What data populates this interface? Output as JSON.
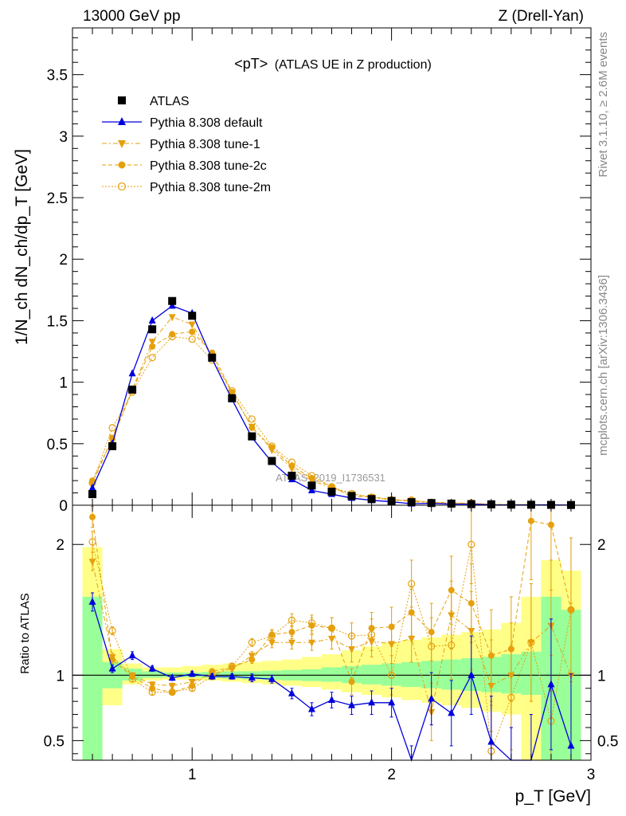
{
  "header": {
    "left": "13000 GeV pp",
    "right": "Z (Drell-Yan)"
  },
  "side_text": {
    "top": "Rivet 3.1.10, ≥ 2.6M events",
    "bottom": "mcplots.cern.ch [arXiv:1306.3436]"
  },
  "watermark": "ATLAS_2019_I1736531",
  "colors": {
    "atlas": "#000000",
    "default": "#0000dd",
    "tune": "#e5a00d",
    "band_inner": "#99ff99",
    "band_outer": "#ffff88"
  },
  "chart_data": [
    {
      "type": "line",
      "title": "<pT>",
      "subtitle": "(ATLAS UE in Z production)",
      "ylabel": "1/N_ch dN_ch/dp_T [GeV]",
      "xlabel": "p_T [GeV]",
      "xlim": [
        0.4,
        3.0
      ],
      "ylim": [
        0,
        3.88
      ],
      "y_ticks": [
        "0",
        "0.5",
        "1",
        "1.5",
        "2",
        "2.5",
        "3",
        "3.5"
      ],
      "grid": false,
      "legend_position": "top-left",
      "x": [
        0.5,
        0.6,
        0.7,
        0.8,
        0.9,
        1.0,
        1.1,
        1.2,
        1.3,
        1.4,
        1.5,
        1.6,
        1.7,
        1.8,
        1.9,
        2.0,
        2.1,
        2.2,
        2.3,
        2.4,
        2.5,
        2.6,
        2.7,
        2.8,
        2.9
      ],
      "series": [
        {
          "name": "ATLAS",
          "marker": "square",
          "values": [
            0.09,
            0.48,
            0.94,
            1.43,
            1.66,
            1.54,
            1.2,
            0.87,
            0.56,
            0.36,
            0.24,
            0.16,
            0.11,
            0.075,
            0.05,
            0.035,
            0.025,
            0.018,
            0.013,
            0.009,
            0.007,
            0.005,
            0.004,
            0.003,
            0.002
          ]
        },
        {
          "name": "Pythia 8.308 default",
          "marker": "triangle-up",
          "values": [
            0.14,
            0.5,
            1.07,
            1.5,
            1.62,
            1.56,
            1.19,
            0.86,
            0.55,
            0.35,
            0.21,
            0.12,
            0.09,
            0.058,
            0.04,
            0.028,
            0.012,
            0.015,
            0.009,
            0.009,
            0.003,
            0.002,
            0.002,
            0.003,
            0.001
          ]
        },
        {
          "name": "Pythia 8.308 tune-1",
          "marker": "triangle-down",
          "values": [
            0.17,
            0.55,
            0.94,
            1.33,
            1.53,
            1.47,
            1.21,
            0.91,
            0.64,
            0.45,
            0.3,
            0.2,
            0.14,
            0.09,
            0.065,
            0.044,
            0.032,
            0.013,
            0.019,
            0.012,
            0.006,
            0.005,
            0.004,
            0.003,
            0.002
          ]
        },
        {
          "name": "Pythia 8.308 tune-2c",
          "marker": "circle",
          "values": [
            0.2,
            0.54,
            0.93,
            1.29,
            1.39,
            1.41,
            1.24,
            0.92,
            0.63,
            0.47,
            0.32,
            0.22,
            0.15,
            0.07,
            0.068,
            0.048,
            0.037,
            0.024,
            0.021,
            0.014,
            0.008,
            0.006,
            0.005,
            0.004,
            0.003
          ]
        },
        {
          "name": "Pythia 8.308 tune-2m",
          "marker": "circle-open",
          "values": [
            0.18,
            0.63,
            0.92,
            1.2,
            1.37,
            1.35,
            1.18,
            0.93,
            0.7,
            0.48,
            0.35,
            0.24,
            0.15,
            0.095,
            0.066,
            0.035,
            0.042,
            0.022,
            0.016,
            0.018,
            0.006,
            0.004,
            0.005,
            0.002,
            0.003
          ]
        }
      ]
    },
    {
      "type": "line",
      "ylabel": "Ratio to ATLAS",
      "xlabel": "p_T [GeV]",
      "xlim": [
        0.4,
        3.0
      ],
      "ylim": [
        0.35,
        2.3
      ],
      "x_ticks": [
        "1",
        "2",
        "3"
      ],
      "y_ticks": [
        "0.5",
        "1",
        "2"
      ],
      "reference_line": 1,
      "x": [
        0.5,
        0.6,
        0.7,
        0.8,
        0.9,
        1.0,
        1.1,
        1.2,
        1.3,
        1.4,
        1.5,
        1.6,
        1.7,
        1.8,
        1.9,
        2.0,
        2.1,
        2.2,
        2.3,
        2.4,
        2.5,
        2.6,
        2.7,
        2.8,
        2.9
      ],
      "bands": {
        "bin_edges": [
          0.45,
          0.55,
          0.65,
          0.75,
          0.85,
          0.95,
          1.05,
          1.15,
          1.25,
          1.35,
          1.45,
          1.55,
          1.65,
          1.75,
          1.85,
          1.95,
          2.05,
          2.15,
          2.25,
          2.35,
          2.45,
          2.55,
          2.65,
          2.75,
          2.85,
          2.95
        ],
        "inner": [
          [
            0.0,
            1.6
          ],
          [
            0.9,
            1.1
          ],
          [
            0.96,
            1.05
          ],
          [
            0.98,
            1.03
          ],
          [
            0.985,
            1.02
          ],
          [
            0.985,
            1.02
          ],
          [
            0.98,
            1.025
          ],
          [
            0.975,
            1.03
          ],
          [
            0.97,
            1.03
          ],
          [
            0.965,
            1.035
          ],
          [
            0.96,
            1.04
          ],
          [
            0.955,
            1.045
          ],
          [
            0.95,
            1.06
          ],
          [
            0.94,
            1.07
          ],
          [
            0.93,
            1.08
          ],
          [
            0.92,
            1.09
          ],
          [
            0.91,
            1.1
          ],
          [
            0.9,
            1.11
          ],
          [
            0.89,
            1.12
          ],
          [
            0.88,
            1.13
          ],
          [
            0.87,
            1.14
          ],
          [
            0.86,
            1.16
          ],
          [
            0.85,
            1.18
          ],
          [
            0.0,
            1.6
          ],
          [
            0.0,
            1.5
          ]
        ],
        "outer": [
          [
            0.0,
            1.98
          ],
          [
            0.77,
            1.2
          ],
          [
            0.93,
            1.09
          ],
          [
            0.96,
            1.06
          ],
          [
            0.965,
            1.06
          ],
          [
            0.965,
            1.07
          ],
          [
            0.96,
            1.08
          ],
          [
            0.95,
            1.09
          ],
          [
            0.94,
            1.1
          ],
          [
            0.93,
            1.11
          ],
          [
            0.92,
            1.12
          ],
          [
            0.91,
            1.14
          ],
          [
            0.89,
            1.16
          ],
          [
            0.87,
            1.19
          ],
          [
            0.85,
            1.22
          ],
          [
            0.83,
            1.25
          ],
          [
            0.81,
            1.27
          ],
          [
            0.79,
            1.29
          ],
          [
            0.77,
            1.31
          ],
          [
            0.75,
            1.33
          ],
          [
            0.72,
            1.35
          ],
          [
            0.7,
            1.4
          ],
          [
            0.0,
            1.6
          ],
          [
            0.0,
            1.88
          ],
          [
            0.0,
            1.8
          ]
        ]
      },
      "series": [
        {
          "name": "Pythia 8.308 default",
          "values": [
            1.56,
            1.05,
            1.15,
            1.05,
            0.98,
            1.01,
            0.99,
            0.99,
            0.98,
            0.97,
            0.86,
            0.74,
            0.81,
            0.77,
            0.79,
            0.79,
            0.31,
            0.82,
            0.71,
            1.0,
            0.49,
            0.2,
            0.25,
            0.93,
            0.46
          ],
          "errors": [
            0.07,
            0.03,
            0.03,
            0.02,
            0.02,
            0.02,
            0.02,
            0.02,
            0.03,
            0.03,
            0.04,
            0.05,
            0.06,
            0.07,
            0.09,
            0.11,
            0.15,
            0.2,
            0.25,
            0.3,
            0.35,
            0.4,
            0.45,
            0.5,
            0.55
          ]
        },
        {
          "name": "Pythia 8.308 tune-1",
          "values": [
            1.87,
            1.14,
            1.0,
            0.93,
            0.92,
            0.95,
            1.01,
            1.05,
            1.15,
            1.25,
            1.25,
            1.25,
            1.28,
            1.2,
            1.26,
            1.24,
            1.28,
            0.72,
            1.46,
            1.34,
            0.92,
            1.0,
            1.25,
            1.38,
            1.0
          ],
          "errors": [
            0.07,
            0.03,
            0.02,
            0.02,
            0.02,
            0.02,
            0.02,
            0.02,
            0.03,
            0.04,
            0.05,
            0.06,
            0.08,
            0.1,
            0.12,
            0.15,
            0.18,
            0.22,
            0.26,
            0.3,
            0.35,
            0.4,
            0.45,
            0.5,
            0.55
          ]
        },
        {
          "name": "Pythia 8.308 tune-2c",
          "values": [
            2.21,
            1.12,
            0.99,
            0.9,
            0.87,
            0.92,
            1.03,
            1.06,
            1.12,
            1.31,
            1.33,
            1.38,
            1.36,
            0.95,
            1.36,
            1.37,
            1.48,
            1.33,
            1.65,
            1.55,
            1.15,
            1.2,
            2.18,
            2.15,
            1.5
          ],
          "errors": [
            0.08,
            0.03,
            0.02,
            0.02,
            0.02,
            0.02,
            0.02,
            0.02,
            0.03,
            0.04,
            0.05,
            0.06,
            0.08,
            0.1,
            0.12,
            0.15,
            0.18,
            0.22,
            0.26,
            0.3,
            0.35,
            0.4,
            0.45,
            0.5,
            0.55
          ]
        },
        {
          "name": "Pythia 8.308 tune-2m",
          "values": [
            2.02,
            1.34,
            0.97,
            0.87,
            0.87,
            0.9,
            0.99,
            1.07,
            1.25,
            1.3,
            1.42,
            1.4,
            1.36,
            1.3,
            1.31,
            1.0,
            1.7,
            1.22,
            1.23,
            2.0,
            0.42,
            0.83,
            1.25,
            0.65,
            1.5
          ],
          "errors": [
            0.08,
            0.03,
            0.02,
            0.02,
            0.02,
            0.02,
            0.02,
            0.02,
            0.03,
            0.04,
            0.05,
            0.06,
            0.08,
            0.1,
            0.12,
            0.15,
            0.18,
            0.22,
            0.26,
            0.3,
            0.35,
            0.4,
            0.45,
            0.5,
            0.55
          ]
        }
      ]
    }
  ]
}
